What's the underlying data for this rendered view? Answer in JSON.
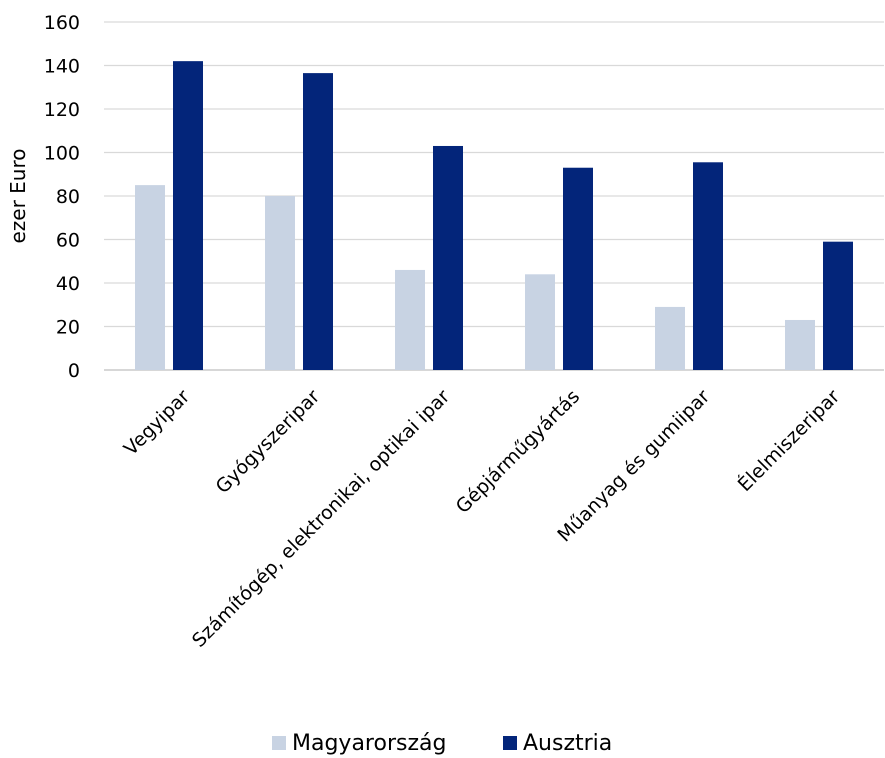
{
  "chart_data": {
    "type": "bar",
    "title": "",
    "xlabel": "",
    "ylabel": "ezer Euro",
    "ylim": [
      0,
      160
    ],
    "yticks": [
      0,
      20,
      40,
      60,
      80,
      100,
      120,
      140,
      160
    ],
    "grid": true,
    "legend_position": "bottom",
    "categories": [
      "Vegyipar",
      "Gyógyszeripar",
      "Számítógép, elektronikai, optikai ipar",
      "Gépjárműgyártás",
      "Műanyag és gumiipar",
      "Élelmiszeripar"
    ],
    "series": [
      {
        "name": "Magyarország",
        "color": "#c8d3e3",
        "values": [
          85,
          80,
          46,
          44,
          29,
          23
        ]
      },
      {
        "name": "Ausztria",
        "color": "#03257a",
        "values": [
          142,
          136.5,
          103,
          93,
          95.5,
          59
        ]
      }
    ]
  }
}
